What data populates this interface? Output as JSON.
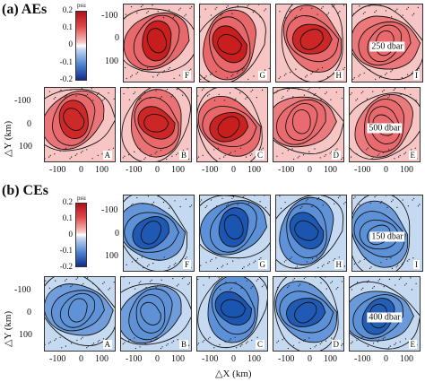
{
  "colors": {
    "red_strong": "#c81e1e",
    "red_mid": "#e8676a",
    "red_light": "#f6c5c4",
    "blue_strong": "#1b55b0",
    "blue_mid": "#5b8fd6",
    "blue_light": "#c5d9f1",
    "contour": "#111111"
  },
  "panel_a": {
    "title": "(a) AEs",
    "colorbar": {
      "unit": "psu",
      "ticks": [
        "0.2",
        "0.1",
        "0",
        "-0.1",
        "-0.2"
      ],
      "scale": [
        "0.2",
        "0.1",
        "0",
        "-0.1",
        "-0.2"
      ]
    },
    "tiles_top": [
      {
        "letter": "F",
        "depth": ""
      },
      {
        "letter": "G",
        "depth": ""
      },
      {
        "letter": "H",
        "depth": ""
      },
      {
        "letter": "I",
        "depth": "250 dbar"
      }
    ],
    "tiles_bottom": [
      {
        "letter": "A",
        "depth": ""
      },
      {
        "letter": "B",
        "depth": ""
      },
      {
        "letter": "C",
        "depth": ""
      },
      {
        "letter": "D",
        "depth": ""
      },
      {
        "letter": "E",
        "depth": "500 dbar"
      }
    ],
    "y_ticks_top": [
      "-100",
      "0",
      "100"
    ],
    "y_ticks_bottom": [
      "-100",
      "0",
      "100"
    ],
    "y_label": "△Y (km)",
    "x_ticks": [
      "-100",
      "0",
      "100"
    ]
  },
  "panel_b": {
    "title": "(b) CEs",
    "colorbar": {
      "unit": "psu",
      "ticks": [
        "0.2",
        "0.1",
        "0",
        "-0.1",
        "-0.2"
      ]
    },
    "tiles_top": [
      {
        "letter": "F",
        "depth": ""
      },
      {
        "letter": "G",
        "depth": ""
      },
      {
        "letter": "H",
        "depth": ""
      },
      {
        "letter": "I",
        "depth": "150 dbar"
      }
    ],
    "tiles_bottom": [
      {
        "letter": "A",
        "depth": ""
      },
      {
        "letter": "B",
        "depth": ""
      },
      {
        "letter": "C",
        "depth": ""
      },
      {
        "letter": "D",
        "depth": ""
      },
      {
        "letter": "E",
        "depth": "400 dbar"
      }
    ],
    "y_ticks_top": [
      "-100",
      "0",
      "100"
    ],
    "y_ticks_bottom": [
      "-100",
      "0",
      "100"
    ],
    "y_label": "△Y (km)",
    "x_ticks": [
      "-100",
      "0",
      "100"
    ],
    "x_label": "△X (km)"
  }
}
